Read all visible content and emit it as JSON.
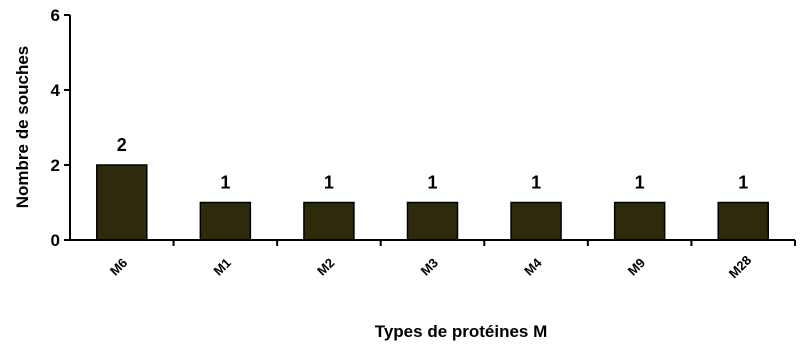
{
  "chart_data": {
    "type": "bar",
    "title": "",
    "xlabel": "Types de protéines M",
    "ylabel": "Nombre de souches",
    "categories": [
      "M6",
      "M1",
      "M2",
      "M3",
      "M4",
      "M9",
      "M28"
    ],
    "values": [
      2,
      1,
      1,
      1,
      1,
      1,
      1
    ],
    "data_labels": [
      "2",
      "1",
      "1",
      "1",
      "1",
      "1",
      "1"
    ],
    "ylim": [
      0,
      6
    ],
    "yticks": [
      0,
      2,
      4,
      6
    ],
    "grid": false,
    "legend": "none",
    "bar_color": "#2e2a0c",
    "bar_edge_color": "#000000"
  }
}
